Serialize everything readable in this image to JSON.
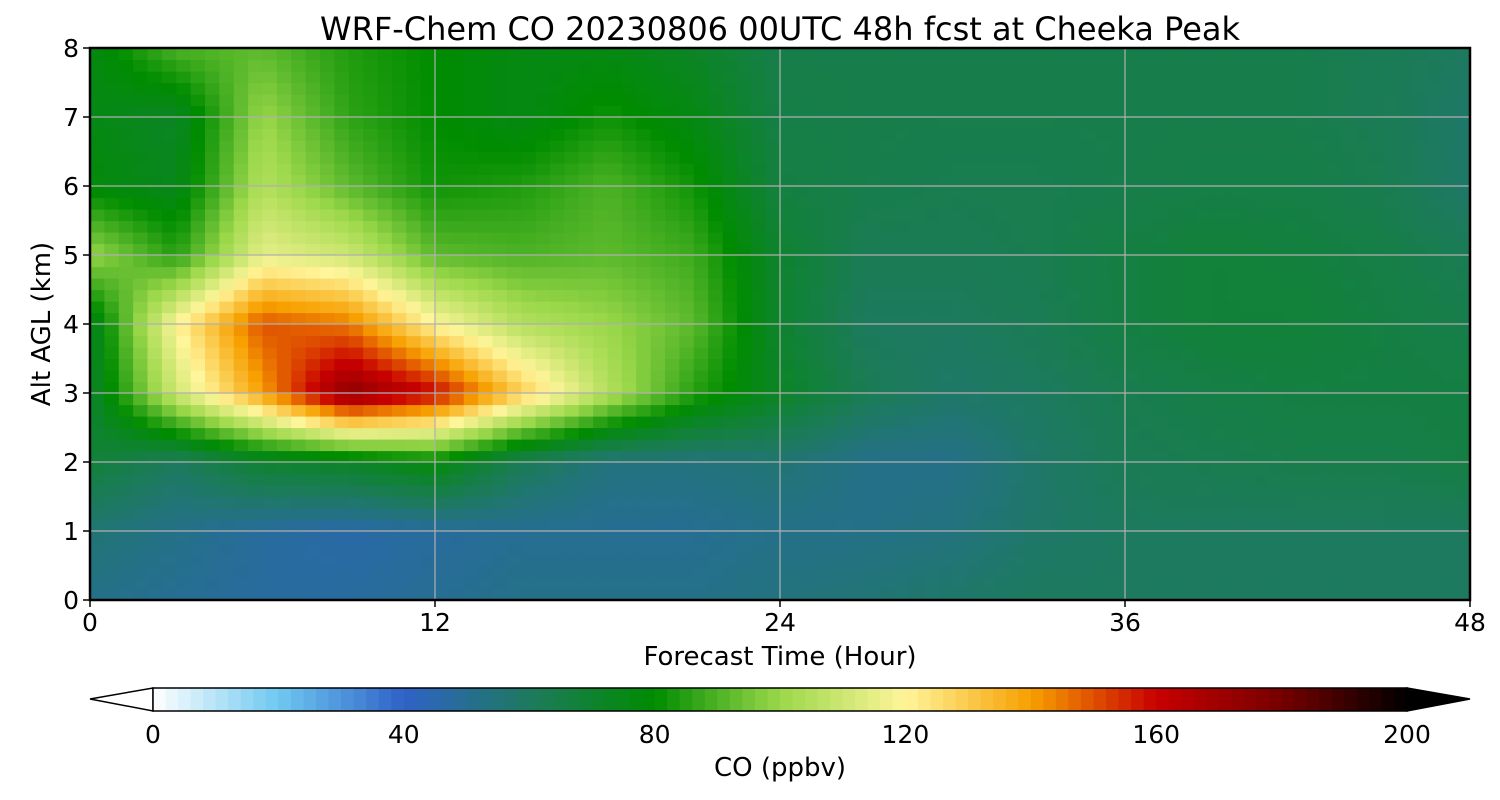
{
  "chart_data": {
    "type": "heatmap",
    "title": "WRF-Chem CO  20230806 00UTC 48h fcst at Cheeka Peak",
    "xlabel": "Forecast Time (Hour)",
    "ylabel": "Alt AGL (km)",
    "xlim": [
      0,
      48
    ],
    "ylim": [
      0,
      8
    ],
    "xticks": [
      0,
      12,
      24,
      36,
      48
    ],
    "yticks": [
      0,
      1,
      2,
      3,
      4,
      5,
      6,
      7,
      8
    ],
    "grid": true,
    "x": [
      0,
      3,
      6,
      9,
      12,
      15,
      18,
      21,
      24,
      27,
      30,
      33,
      36,
      39,
      42,
      45,
      48
    ],
    "y": [
      0,
      1,
      2,
      3,
      4,
      5,
      6,
      7,
      8
    ],
    "values": [
      [
        52,
        50,
        48,
        48,
        50,
        52,
        52,
        52,
        54,
        56,
        58,
        60,
        60,
        60,
        60,
        60,
        60
      ],
      [
        56,
        52,
        48,
        46,
        48,
        50,
        50,
        50,
        52,
        52,
        54,
        58,
        60,
        60,
        60,
        60,
        60
      ],
      [
        68,
        60,
        70,
        72,
        78,
        62,
        54,
        54,
        56,
        52,
        52,
        58,
        62,
        63,
        64,
        64,
        66
      ],
      [
        70,
        110,
        140,
        175,
        160,
        130,
        105,
        85,
        72,
        62,
        58,
        60,
        63,
        65,
        66,
        66,
        66
      ],
      [
        72,
        120,
        150,
        145,
        120,
        105,
        100,
        92,
        70,
        60,
        60,
        62,
        66,
        68,
        68,
        66,
        64
      ],
      [
        100,
        85,
        115,
        110,
        92,
        90,
        92,
        88,
        70,
        62,
        62,
        63,
        66,
        68,
        67,
        65,
        62
      ],
      [
        78,
        74,
        105,
        92,
        82,
        84,
        90,
        82,
        66,
        64,
        63,
        63,
        64,
        65,
        65,
        63,
        58
      ],
      [
        76,
        72,
        100,
        86,
        80,
        76,
        82,
        76,
        65,
        64,
        64,
        64,
        64,
        64,
        64,
        62,
        58
      ],
      [
        76,
        90,
        92,
        84,
        80,
        76,
        76,
        72,
        64,
        64,
        64,
        64,
        64,
        64,
        64,
        62,
        60
      ]
    ],
    "colorbar": {
      "label": "CO  (ppbv)",
      "min": 0,
      "max": 200,
      "ticks": [
        0,
        40,
        80,
        120,
        160,
        200
      ],
      "extend": "both",
      "colors": [
        "#ffffff",
        "#6ec8f0",
        "#2f62c7",
        "#1d7a5e",
        "#008c00",
        "#9bd84a",
        "#fff59a",
        "#f7a000",
        "#c80000",
        "#760000",
        "#000000"
      ]
    }
  }
}
